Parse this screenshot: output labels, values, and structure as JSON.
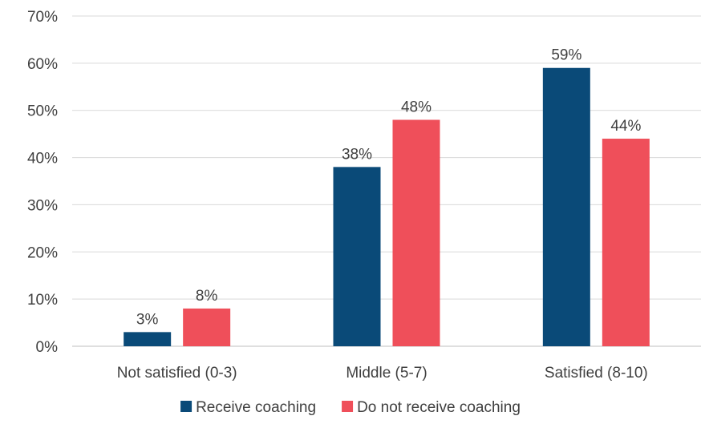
{
  "chart_data": {
    "type": "bar",
    "title": "",
    "xlabel": "",
    "ylabel": "",
    "categories": [
      "Not satisfied (0-3)",
      "Middle (5-7)",
      "Satisfied (8-10)"
    ],
    "series": [
      {
        "name": "Receive coaching",
        "values": [
          3,
          38,
          59
        ],
        "color": "#0a4a78"
      },
      {
        "name": "Do not receive coaching",
        "values": [
          8,
          48,
          44
        ],
        "color": "#ef4f5a"
      }
    ],
    "ylim": [
      0,
      70
    ],
    "yticks": [
      0,
      10,
      20,
      30,
      40,
      50,
      60,
      70
    ],
    "ytick_labels": [
      "0%",
      "10%",
      "20%",
      "30%",
      "40%",
      "50%",
      "60%",
      "70%"
    ],
    "value_labels": [
      [
        "3%",
        "38%",
        "59%"
      ],
      [
        "8%",
        "48%",
        "44%"
      ]
    ],
    "grid": true,
    "gridline_color": "#d9d9d9",
    "legend_position": "bottom"
  }
}
